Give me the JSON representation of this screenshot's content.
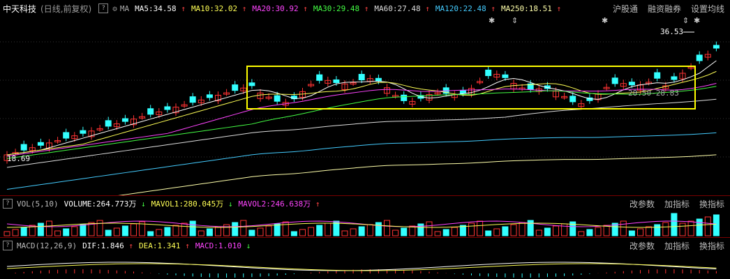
{
  "header": {
    "stock_name": "中天科技",
    "mode": "(日线,前复权)",
    "help": "?",
    "settings_icon": "gear-icon",
    "ma_label": "MA",
    "ma": [
      {
        "text": "MA5:34.58",
        "arrow": "↑",
        "color": "#ffffff"
      },
      {
        "text": "MA10:32.02",
        "arrow": "↑",
        "color": "#ffff55"
      },
      {
        "text": "MA20:30.92",
        "arrow": "↑",
        "color": "#ff44ff"
      },
      {
        "text": "MA30:29.48",
        "arrow": "↑",
        "color": "#44ff44"
      },
      {
        "text": "MA60:27.48",
        "arrow": "↑",
        "color": "#dddddd"
      },
      {
        "text": "MA120:22.48",
        "arrow": "↑",
        "color": "#44ccff"
      },
      {
        "text": "MA250:18.51",
        "arrow": "↑",
        "color": "#ffffaa"
      }
    ],
    "menu": [
      "沪股通",
      "融资融券",
      "设置均线"
    ]
  },
  "price_panel": {
    "high_label": "36.53",
    "low_label": "18.69",
    "box_label": "28.50-28.83"
  },
  "vol_panel": {
    "help": "?",
    "name": "VOL(5,10)",
    "items": [
      {
        "text": "VOLUME:264.773万",
        "arrow": "↓",
        "color": "#ffffff"
      },
      {
        "text": "MAVOL1:280.045万",
        "arrow": "↓",
        "color": "#ffff55"
      },
      {
        "text": "MAVOL2:246.638万",
        "arrow": "↑",
        "color": "#ff44ff"
      }
    ],
    "buttons": [
      "改参数",
      "加指标",
      "换指标"
    ]
  },
  "macd_panel": {
    "help": "?",
    "name": "MACD(12,26,9)",
    "items": [
      {
        "text": "DIF:1.846",
        "arrow": "↑",
        "color": "#ffffff"
      },
      {
        "text": "DEA:1.341",
        "arrow": "↑",
        "color": "#ffff55"
      },
      {
        "text": "MACD:1.010",
        "arrow": "↓",
        "color": "#ff44ff"
      }
    ],
    "buttons": [
      "改参数",
      "加指标",
      "换指标"
    ]
  },
  "colors": {
    "up": "#ff3333",
    "down": "#33ffff",
    "box": "#ffff00"
  }
}
